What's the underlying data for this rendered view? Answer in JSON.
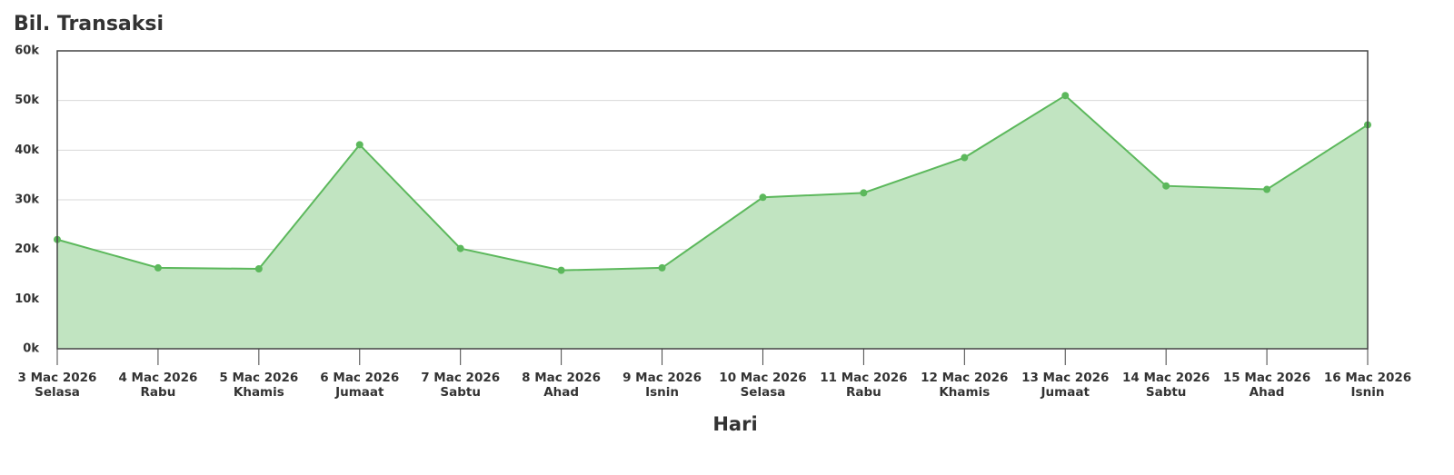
{
  "chart_data": {
    "type": "area",
    "title": "Bil. Transaksi",
    "x_label": "Hari",
    "categories": [
      [
        "3 Mac 2026",
        "Selasa"
      ],
      [
        "4 Mac 2026",
        "Rabu"
      ],
      [
        "5 Mac 2026",
        "Khamis"
      ],
      [
        "6 Mac 2026",
        "Jumaat"
      ],
      [
        "7 Mac 2026",
        "Sabtu"
      ],
      [
        "8 Mac 2026",
        "Ahad"
      ],
      [
        "9 Mac 2026",
        "Isnin"
      ],
      [
        "10 Mac 2026",
        "Selasa"
      ],
      [
        "11 Mac 2026",
        "Rabu"
      ],
      [
        "12 Mac 2026",
        "Khamis"
      ],
      [
        "13 Mac 2026",
        "Jumaat"
      ],
      [
        "14 Mac 2026",
        "Sabtu"
      ],
      [
        "15 Mac 2026",
        "Ahad"
      ],
      [
        "16 Mac 2026",
        "Isnin"
      ]
    ],
    "values": [
      22000,
      16300,
      16100,
      41100,
      20200,
      15800,
      16300,
      30500,
      31400,
      38500,
      51000,
      32800,
      32100,
      45100
    ],
    "color": "#5cb85c",
    "fill_color": "#c1e4c1",
    "ylim": [
      0,
      60000
    ],
    "yticks": [
      {
        "value": 0,
        "label": "0k"
      },
      {
        "value": 10000,
        "label": "10k"
      },
      {
        "value": 20000,
        "label": "20k"
      },
      {
        "value": 30000,
        "label": "30k"
      },
      {
        "value": 40000,
        "label": "40k"
      },
      {
        "value": 50000,
        "label": "50k"
      },
      {
        "value": 60000,
        "label": "60k"
      }
    ],
    "grid": true
  }
}
